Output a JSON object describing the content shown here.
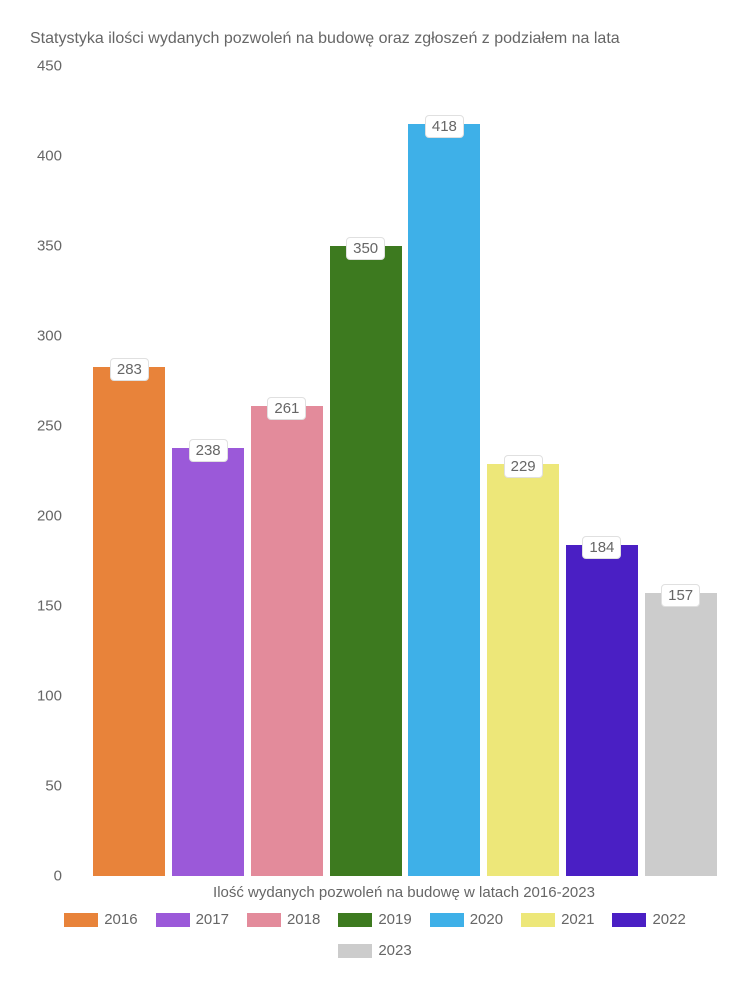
{
  "chart": {
    "type": "bar",
    "title": "Statystyka ilości wydanych pozwoleń na budowę oraz zgłoszeń z podziałem na lata",
    "xlabel": "Ilość wydanych pozwoleń na budowę w latach 2016-2023",
    "categories": [
      "2016",
      "2017",
      "2018",
      "2019",
      "2020",
      "2021",
      "2022",
      "2023"
    ],
    "values": [
      283,
      238,
      261,
      350,
      418,
      229,
      184,
      157
    ],
    "bar_colors": [
      "#e8833a",
      "#9b59d9",
      "#e38b9b",
      "#3d7a1f",
      "#3eb0e8",
      "#ede779",
      "#4a1fc4",
      "#cccccc"
    ],
    "ylim": [
      0,
      450
    ],
    "ytick_step": 50,
    "yticks": [
      0,
      50,
      100,
      150,
      200,
      250,
      300,
      350,
      400,
      450
    ],
    "background_color": "#ffffff",
    "text_color": "#666666",
    "title_fontsize": 16,
    "label_fontsize": 15,
    "tick_fontsize": 15,
    "bar_width": 0.92,
    "data_label_bg": "#ffffff",
    "data_label_border": "#e0e0e0"
  }
}
